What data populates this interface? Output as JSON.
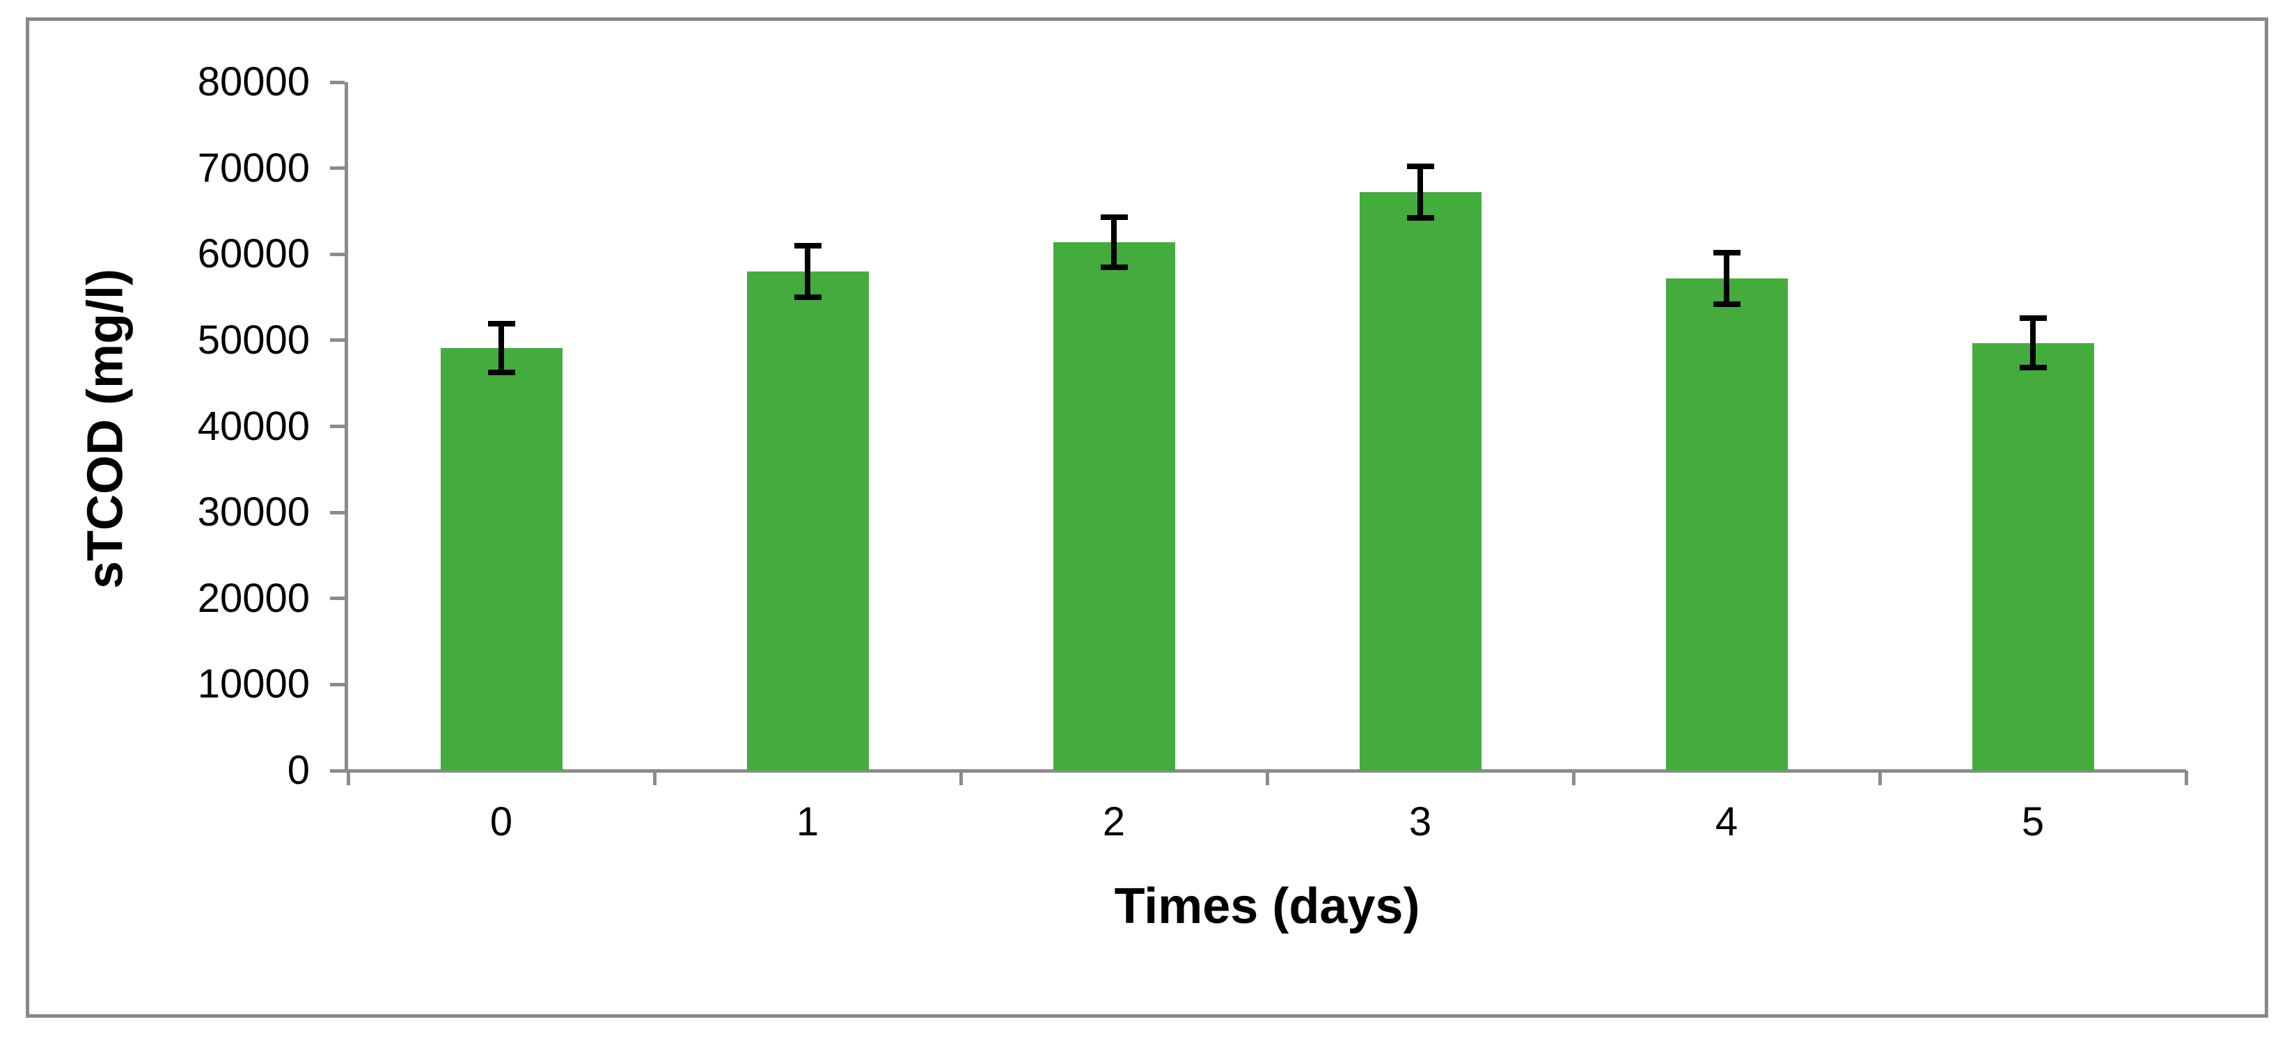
{
  "figure": {
    "background": "#ffffff",
    "frame_color": "#898989"
  },
  "chart_data": {
    "type": "bar",
    "title": "",
    "xlabel": "Times (days)",
    "ylabel": "sTCOD (mg/l)",
    "categories": [
      "0",
      "1",
      "2",
      "3",
      "4",
      "5"
    ],
    "series": [
      {
        "name": "sTCOD",
        "values": [
          49100,
          58000,
          61400,
          67200,
          57200,
          49700
        ],
        "error_bars": [
          2800,
          3000,
          2900,
          3000,
          3000,
          2900
        ]
      }
    ],
    "ylim": [
      0,
      80000
    ],
    "ytick_step": 10000,
    "ytick_labels": [
      "0",
      "10000",
      "20000",
      "30000",
      "40000",
      "50000",
      "60000",
      "70000",
      "80000"
    ],
    "grid": false,
    "legend": null,
    "bar_color": "#43ac3c",
    "axis_color": "#8c8c8c",
    "error_bar_color": "#000000"
  }
}
